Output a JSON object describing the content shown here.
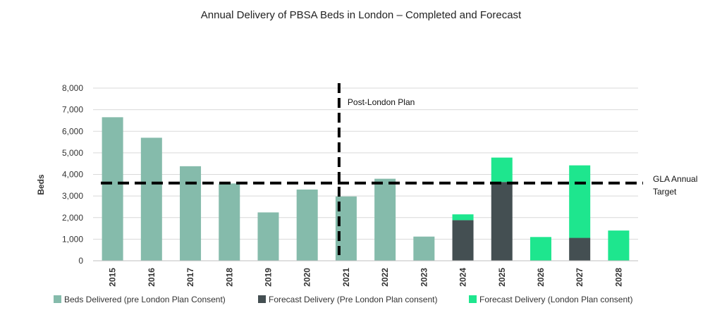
{
  "chart_data": {
    "type": "bar",
    "stacked": true,
    "title": "Annual Delivery of PBSA Beds in London – Completed and Forecast",
    "ylabel": "Beds",
    "xlabel": "",
    "ylim": [
      0,
      8000
    ],
    "yticks": [
      0,
      1000,
      2000,
      3000,
      4000,
      5000,
      6000,
      7000,
      8000
    ],
    "ytick_labels": [
      "0",
      "1,000",
      "2,000",
      "3,000",
      "4,000",
      "5,000",
      "6,000",
      "7,000",
      "8,000"
    ],
    "categories": [
      "2015",
      "2016",
      "2017",
      "2018",
      "2019",
      "2020",
      "2021",
      "2022",
      "2023",
      "2024",
      "2025",
      "2026",
      "2027",
      "2028"
    ],
    "series": [
      {
        "name": "Beds Delivered (pre London Plan Consent)",
        "color": "#85bbab",
        "values": [
          6650,
          5700,
          4380,
          3580,
          2240,
          3300,
          2980,
          3800,
          1120,
          0,
          0,
          0,
          0,
          0
        ]
      },
      {
        "name": "Forecast Delivery (Pre London Plan consent)",
        "color": "#444f52",
        "values": [
          0,
          0,
          0,
          0,
          0,
          0,
          0,
          0,
          0,
          1880,
          3650,
          0,
          1060,
          0
        ]
      },
      {
        "name": "Forecast Delivery (London Plan consent)",
        "color": "#1ee68e",
        "values": [
          0,
          0,
          0,
          0,
          0,
          0,
          0,
          0,
          0,
          270,
          1130,
          1100,
          3360,
          1400
        ]
      }
    ],
    "reference_lines": {
      "horizontal": {
        "value": 3600,
        "label_line1": "GLA Annual",
        "label_line2": "Target"
      },
      "vertical": {
        "category": "2021",
        "label": "Post-London Plan"
      }
    },
    "grid": true,
    "legend_position": "bottom"
  }
}
